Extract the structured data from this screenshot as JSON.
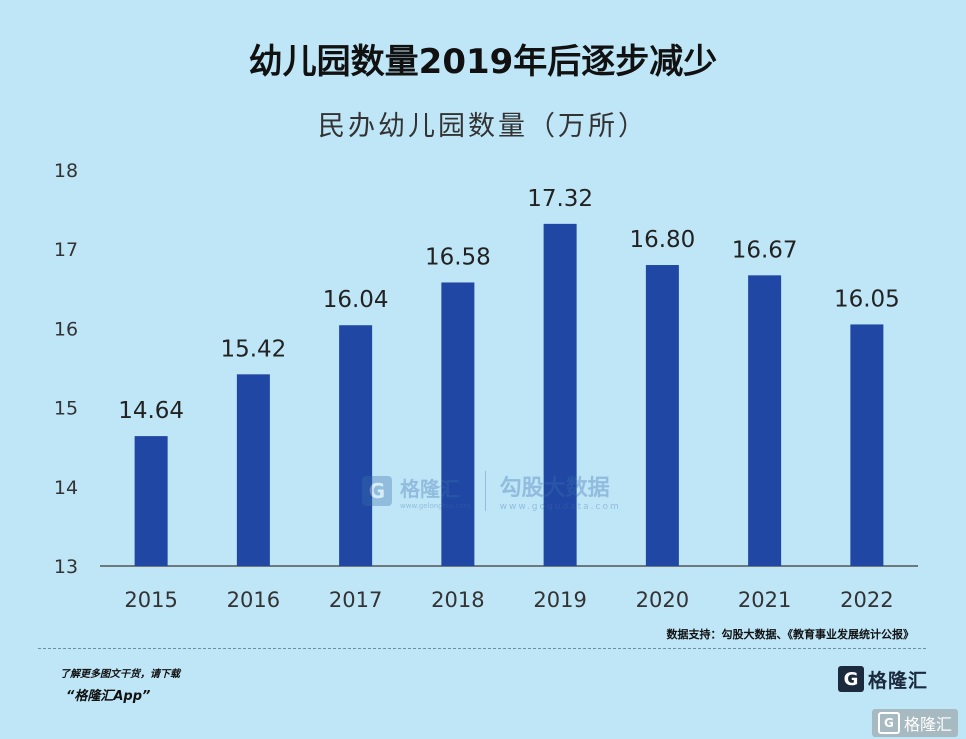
{
  "header": {
    "title": "幼儿园数量2019年后逐步减少"
  },
  "chart_data": {
    "type": "bar",
    "title": "民办幼儿园数量（万所）",
    "categories": [
      "2015",
      "2016",
      "2017",
      "2018",
      "2019",
      "2020",
      "2021",
      "2022"
    ],
    "values": [
      14.64,
      15.42,
      16.04,
      16.58,
      17.32,
      16.8,
      16.67,
      16.05
    ],
    "data_labels": [
      "14.64",
      "15.42",
      "16.04",
      "16.58",
      "17.32",
      "16.80",
      "16.67",
      "16.05"
    ],
    "yticks": [
      "13",
      "14",
      "15",
      "16",
      "17",
      "18"
    ],
    "ylim": [
      13,
      18
    ],
    "bar_color": "#1f47a3",
    "grid": false
  },
  "footer": {
    "source": "数据支持：勾股大数据、《教育事业发展统计公报》",
    "promo": "了解更多图文干货，请下载",
    "app": "“格隆汇App”",
    "brand": "格隆汇",
    "logo_glyph": "G",
    "corner_brand": "格隆汇"
  },
  "watermark": {
    "name1": "格隆汇",
    "url1": "www.gelonghui.com",
    "name2": "勾股大数据",
    "url2": "www.gogudata.com"
  },
  "colors": {
    "background": "#bfe6f7",
    "bar": "#1f47a3"
  }
}
